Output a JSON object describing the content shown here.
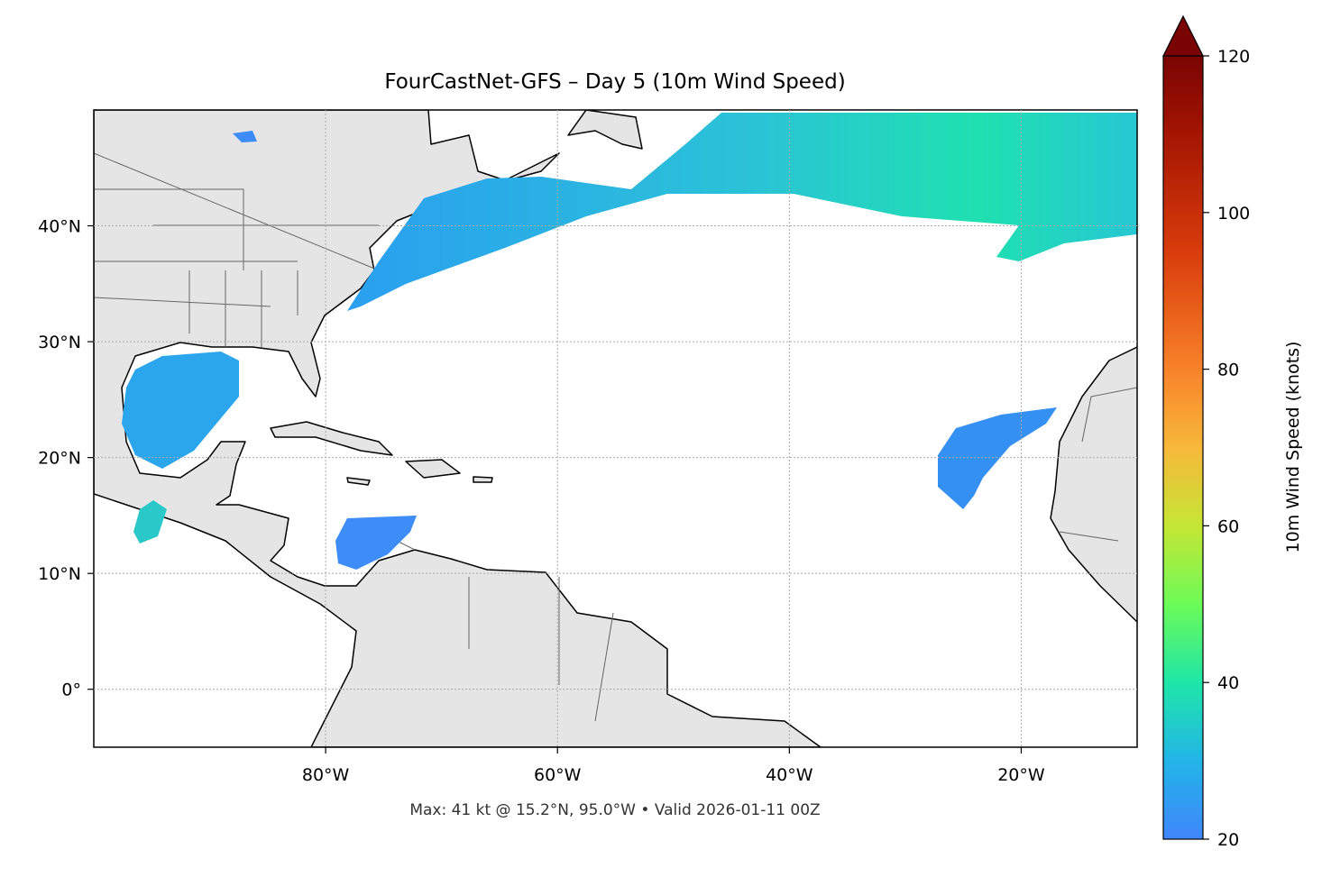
{
  "chart_data": {
    "type": "map",
    "title": "FourCastNet-GFS – Day 5 (10m Wind Speed)",
    "footer": "Max: 41 kt @ 15.2°N, 95.0°W • Valid 2026-01-11 00Z",
    "xlim": [
      -100,
      -10
    ],
    "ylim": [
      -5,
      50
    ],
    "xticks": [
      {
        "value": -80,
        "label": "80°W"
      },
      {
        "value": -60,
        "label": "60°W"
      },
      {
        "value": -40,
        "label": "40°W"
      },
      {
        "value": -20,
        "label": "20°W"
      }
    ],
    "yticks": [
      {
        "value": 0,
        "label": "0°"
      },
      {
        "value": 10,
        "label": "10°N"
      },
      {
        "value": 20,
        "label": "20°N"
      },
      {
        "value": 30,
        "label": "30°N"
      },
      {
        "value": 40,
        "label": "40°N"
      }
    ],
    "grid": true,
    "colorbar": {
      "label": "10m Wind Speed (knots)",
      "lim": [
        20,
        120
      ],
      "ticks": [
        20,
        40,
        60,
        80,
        100,
        120
      ],
      "extend": "max"
    }
  }
}
